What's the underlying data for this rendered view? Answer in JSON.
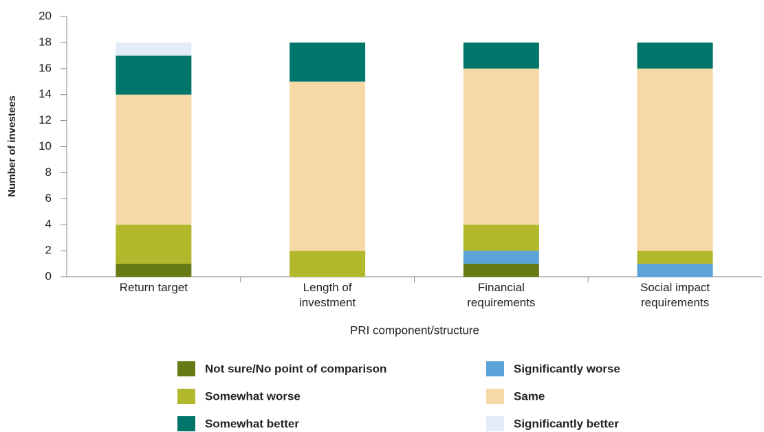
{
  "chart_data": {
    "type": "stacked_bar",
    "y_label": "Number of investees",
    "x_label": "PRI component/structure",
    "categories": [
      "Return target",
      "Length of investment",
      "Financial requirements",
      "Social impact requirements"
    ],
    "series": [
      {
        "name": "Not sure/No point of comparison",
        "color": "#667a16",
        "values": [
          1,
          0,
          1,
          0
        ]
      },
      {
        "name": "Significantly worse",
        "color": "#5ba3d9",
        "values": [
          0,
          0,
          1,
          1
        ]
      },
      {
        "name": "Somewhat worse",
        "color": "#b2b82c",
        "values": [
          3,
          2,
          2,
          1
        ]
      },
      {
        "name": "Same",
        "color": "#f5d9a6",
        "values": [
          10,
          13,
          12,
          14
        ]
      },
      {
        "name": "Somewhat better",
        "color": "#00766a",
        "values": [
          3,
          3,
          2,
          2
        ]
      },
      {
        "name": "Significantly better",
        "color": "#e3ebf6",
        "values": [
          1,
          0,
          0,
          0
        ]
      }
    ],
    "ylim": [
      0,
      20
    ],
    "yticks": [
      0,
      2,
      4,
      6,
      8,
      10,
      12,
      14,
      16,
      18,
      20
    ],
    "grid": false
  }
}
